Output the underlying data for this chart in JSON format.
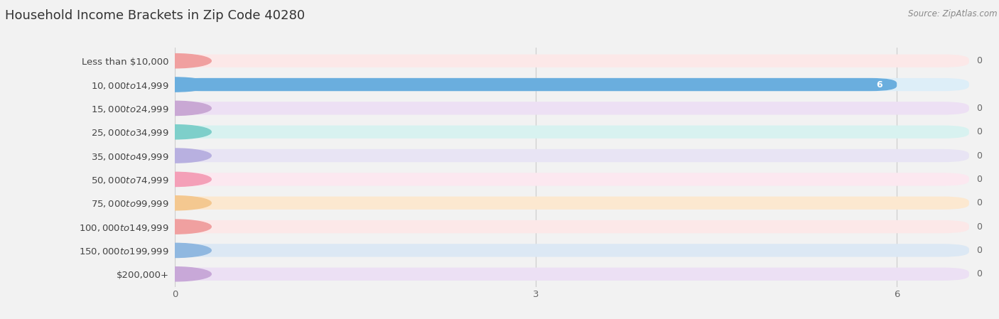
{
  "title": "Household Income Brackets in Zip Code 40280",
  "source_text": "Source: ZipAtlas.com",
  "categories": [
    "Less than $10,000",
    "$10,000 to $14,999",
    "$15,000 to $24,999",
    "$25,000 to $34,999",
    "$35,000 to $49,999",
    "$50,000 to $74,999",
    "$75,000 to $99,999",
    "$100,000 to $149,999",
    "$150,000 to $199,999",
    "$200,000+"
  ],
  "values": [
    0,
    6,
    0,
    0,
    0,
    0,
    0,
    0,
    0,
    0
  ],
  "bar_colors": [
    "#f0a0a0",
    "#6aaede",
    "#c9a8d4",
    "#7ecfca",
    "#b8b0e0",
    "#f4a0b8",
    "#f4c890",
    "#f0a0a0",
    "#90b8e0",
    "#c8a8d8"
  ],
  "bar_bg_colors": [
    "#fce8e8",
    "#ddeef8",
    "#ede0f4",
    "#d8f2f0",
    "#e8e4f4",
    "#fce8f0",
    "#fce8d0",
    "#fce8e8",
    "#dce8f4",
    "#ece0f4"
  ],
  "xlim": [
    0,
    6.6
  ],
  "xticks": [
    0,
    3,
    6
  ],
  "background_color": "#f2f2f2",
  "plot_bg_color": "#f2f2f2",
  "bar_height": 0.55,
  "title_fontsize": 13,
  "label_fontsize": 9.5,
  "value_label_fontsize": 9
}
